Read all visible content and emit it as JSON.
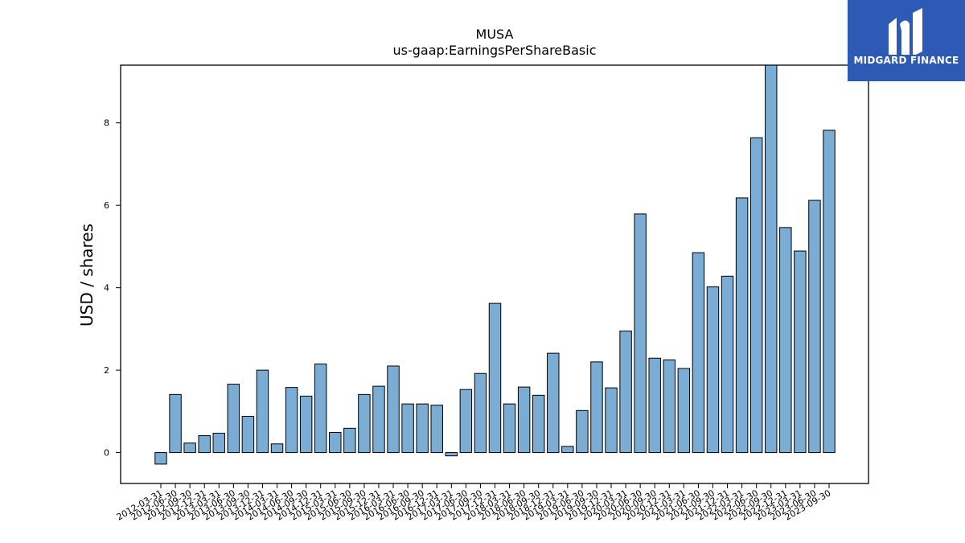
{
  "brand": {
    "name": "MIDGARD FINANCE",
    "logo_icon": "midgard-logo-icon",
    "background": "#2d5ab4"
  },
  "chart_data": {
    "type": "bar",
    "title": "MUSA",
    "subtitle": "us-gaap:EarningsPerShareBasic",
    "xlabel": "",
    "ylabel": "USD / shares",
    "ylim": [
      -0.75,
      9.4
    ],
    "yticks": [
      0,
      2,
      4,
      6,
      8
    ],
    "bar_color": "#7bacd3",
    "grid": false,
    "categories": [
      "2012-03-31",
      "2012-06-30",
      "2012-09-30",
      "2012-12-31",
      "2013-03-31",
      "2013-06-30",
      "2013-09-30",
      "2013-12-31",
      "2014-03-31",
      "2014-06-30",
      "2014-09-30",
      "2014-12-31",
      "2015-03-31",
      "2015-06-30",
      "2015-09-30",
      "2015-12-31",
      "2016-03-31",
      "2016-06-30",
      "2016-09-30",
      "2016-12-31",
      "2017-03-31",
      "2017-06-30",
      "2017-09-30",
      "2017-12-31",
      "2018-03-31",
      "2018-06-30",
      "2018-09-30",
      "2018-12-31",
      "2019-03-31",
      "2019-06-30",
      "2019-09-30",
      "2019-12-31",
      "2020-03-31",
      "2020-06-30",
      "2020-09-30",
      "2020-12-31",
      "2021-03-31",
      "2021-06-30",
      "2021-09-30",
      "2021-12-31",
      "2022-03-31",
      "2022-06-30",
      "2022-09-30",
      "2022-12-31",
      "2023-03-31",
      "2023-06-30",
      "2023-09-30"
    ],
    "values": [
      -0.28,
      1.41,
      0.23,
      0.41,
      0.47,
      1.66,
      0.88,
      2.0,
      0.21,
      1.58,
      1.37,
      2.15,
      0.49,
      0.59,
      1.41,
      1.61,
      2.1,
      1.18,
      1.18,
      1.15,
      -0.08,
      1.53,
      1.92,
      3.62,
      1.18,
      1.59,
      1.39,
      2.41,
      0.15,
      1.02,
      2.2,
      1.57,
      2.95,
      5.79,
      2.29,
      2.25,
      2.04,
      4.85,
      4.02,
      4.28,
      6.18,
      7.64,
      9.45,
      5.46,
      4.89,
      6.12,
      7.82
    ]
  }
}
